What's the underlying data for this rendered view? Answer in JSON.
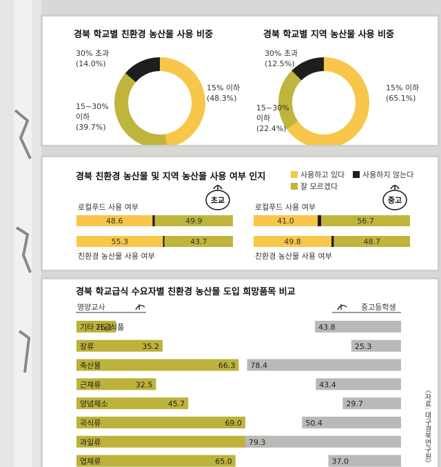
{
  "colors": {
    "yellow": "#f7c64a",
    "olive": "#bfb53c",
    "black": "#1e1e1e",
    "gray": "#b9b9b7",
    "bar_left": "#bdb23a"
  },
  "source": "〈자료: 대구경북연구원〉",
  "chart_data": [
    {
      "type": "pie",
      "title": "경북 학교별 친환경 농산물 사용 비중",
      "slices": [
        {
          "label": "15% 이하",
          "pct_text": "(48.3%)",
          "value": 48.3,
          "color": "#f7c64a"
        },
        {
          "label": "15~30% 이하",
          "pct_text": "(39.7%)",
          "value": 39.7,
          "color": "#bfb53c"
        },
        {
          "label": "30% 초과",
          "pct_text": "(14.0%)",
          "value": 14.0,
          "color": "#1e1e1e"
        }
      ]
    },
    {
      "type": "pie",
      "title": "경북 학교별 지역 농산물 사용 비중",
      "slices": [
        {
          "label": "15% 이하",
          "pct_text": "(65.1%)",
          "value": 65.1,
          "color": "#f7c64a"
        },
        {
          "label": "15~30% 이하",
          "pct_text": "(22.4%)",
          "value": 22.4,
          "color": "#bfb53c"
        },
        {
          "label": "30% 초과",
          "pct_text": "(12.5%)",
          "value": 12.5,
          "color": "#1e1e1e"
        }
      ]
    },
    {
      "type": "bar",
      "stacked": true,
      "title": "경북 친환경 농산물 및 지역 농산물 사용 여부 인지",
      "legend": [
        {
          "label": "사용하고 있다",
          "color": "#f7c64a"
        },
        {
          "label": "사용하지 않는다",
          "color": "#1e1e1e"
        },
        {
          "label": "잘 모르겠다",
          "color": "#bfb53c"
        }
      ],
      "groups": [
        {
          "badge": "초교",
          "rows": [
            {
              "label": "로컬푸드 사용 여부",
              "values": [
                48.6,
                1.5,
                49.9
              ],
              "texts": [
                "48.6",
                "49.9"
              ]
            },
            {
              "label": "친환경 농산물 사용 여부",
              "values": [
                55.3,
                1.0,
                43.7
              ],
              "texts": [
                "55.3",
                "43.7"
              ]
            }
          ]
        },
        {
          "badge": "중고",
          "rows": [
            {
              "label": "로컬푸드 사용 여부",
              "values": [
                41.0,
                2.3,
                56.7
              ],
              "texts": [
                "41.0",
                "56.7"
              ]
            },
            {
              "label": "친환경 농산물 사용 여부",
              "values": [
                49.8,
                1.5,
                48.7
              ],
              "texts": [
                "49.8",
                "48.7"
              ]
            }
          ]
        }
      ]
    },
    {
      "type": "bar",
      "title": "경북 학교급식 수요자별 친환경 농산물 도입 희망품목 비교",
      "left_label": "영양교사",
      "right_label": "중고등학생",
      "categories": [
        "기타 가공식품",
        "장류",
        "축산물",
        "근채류",
        "양념채소",
        "곡식류",
        "과일류",
        "엽채류"
      ],
      "series": [
        {
          "name": "영양교사",
          "values": [
            16.1,
            35.2,
            66.3,
            32.5,
            45.7,
            69.0,
            79.9,
            65.0
          ]
        },
        {
          "name": "중고등학생",
          "values": [
            43.8,
            25.3,
            78.4,
            43.4,
            29.7,
            50.4,
            79.3,
            37.0
          ]
        }
      ],
      "value_texts_left": [
        "16.1",
        "35.2",
        "66.3",
        "32.5",
        "45.7",
        "69.0",
        "79.9",
        "65.0"
      ],
      "value_texts_right": [
        "43.8",
        "25.3",
        "78.4",
        "43.4",
        "29.7",
        "50.4",
        "79.3",
        "37.0"
      ]
    }
  ]
}
